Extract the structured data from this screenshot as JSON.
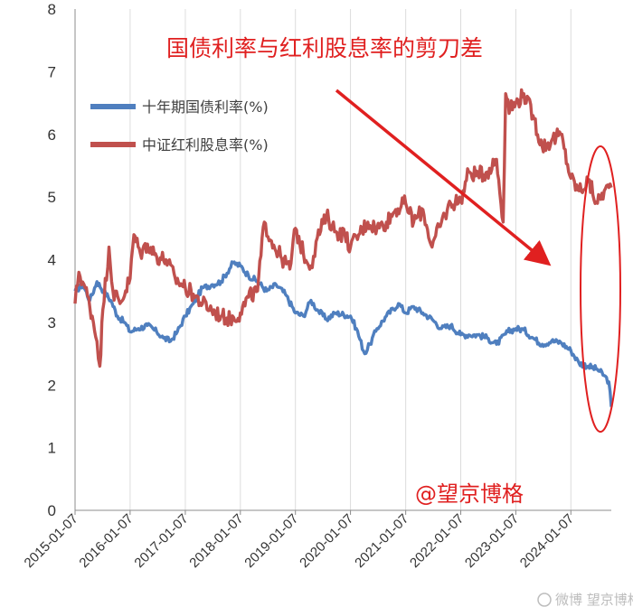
{
  "chart_data": {
    "type": "line",
    "title": "国债利率与红利股息率的剪刀差",
    "xlabel": "",
    "ylabel": "",
    "ylim": [
      0,
      8
    ],
    "yticks": [
      "0",
      "1",
      "2",
      "3",
      "4",
      "5",
      "6",
      "7",
      "8"
    ],
    "xticks": [
      "2015-01-07",
      "2016-01-07",
      "2017-01-07",
      "2018-01-07",
      "2019-01-07",
      "2020-01-07",
      "2021-01-07",
      "2022-01-07",
      "2023-01-07",
      "2024-01-07"
    ],
    "x_start": "2015-01-07",
    "x_end": "2024-10-01",
    "grid": "vertical",
    "legend": "top-left",
    "series": [
      {
        "name": "十年期国债利率(%)",
        "color": "#4f7fbf",
        "points": [
          [
            "2015-01-07",
            3.5
          ],
          [
            "2015-03-01",
            3.6
          ],
          [
            "2015-04-15",
            3.35
          ],
          [
            "2015-06-01",
            3.65
          ],
          [
            "2015-07-15",
            3.5
          ],
          [
            "2015-09-01",
            3.35
          ],
          [
            "2015-10-15",
            3.1
          ],
          [
            "2015-12-01",
            3.0
          ],
          [
            "2016-01-07",
            2.85
          ],
          [
            "2016-03-01",
            2.9
          ],
          [
            "2016-05-01",
            2.95
          ],
          [
            "2016-07-01",
            2.85
          ],
          [
            "2016-08-15",
            2.75
          ],
          [
            "2016-10-01",
            2.7
          ],
          [
            "2016-11-15",
            2.85
          ],
          [
            "2017-01-07",
            3.1
          ],
          [
            "2017-03-01",
            3.3
          ],
          [
            "2017-05-01",
            3.55
          ],
          [
            "2017-07-01",
            3.6
          ],
          [
            "2017-09-01",
            3.65
          ],
          [
            "2017-11-20",
            3.95
          ],
          [
            "2018-01-07",
            3.9
          ],
          [
            "2018-03-01",
            3.75
          ],
          [
            "2018-05-01",
            3.65
          ],
          [
            "2018-07-01",
            3.5
          ],
          [
            "2018-09-01",
            3.6
          ],
          [
            "2018-11-01",
            3.45
          ],
          [
            "2019-01-07",
            3.15
          ],
          [
            "2019-03-01",
            3.1
          ],
          [
            "2019-04-20",
            3.35
          ],
          [
            "2019-06-01",
            3.2
          ],
          [
            "2019-08-01",
            3.05
          ],
          [
            "2019-10-01",
            3.15
          ],
          [
            "2020-01-07",
            3.1
          ],
          [
            "2020-02-15",
            2.9
          ],
          [
            "2020-04-10",
            2.5
          ],
          [
            "2020-05-15",
            2.65
          ],
          [
            "2020-07-01",
            2.9
          ],
          [
            "2020-09-01",
            3.1
          ],
          [
            "2020-11-20",
            3.3
          ],
          [
            "2021-01-07",
            3.15
          ],
          [
            "2021-03-01",
            3.25
          ],
          [
            "2021-05-01",
            3.15
          ],
          [
            "2021-07-01",
            3.05
          ],
          [
            "2021-09-01",
            2.9
          ],
          [
            "2021-11-01",
            2.95
          ],
          [
            "2022-01-07",
            2.8
          ],
          [
            "2022-03-01",
            2.8
          ],
          [
            "2022-05-01",
            2.8
          ],
          [
            "2022-07-01",
            2.75
          ],
          [
            "2022-09-01",
            2.65
          ],
          [
            "2022-11-15",
            2.85
          ],
          [
            "2023-01-07",
            2.9
          ],
          [
            "2023-03-01",
            2.88
          ],
          [
            "2023-05-01",
            2.75
          ],
          [
            "2023-07-01",
            2.65
          ],
          [
            "2023-09-01",
            2.7
          ],
          [
            "2023-11-01",
            2.68
          ],
          [
            "2024-01-07",
            2.55
          ],
          [
            "2024-03-01",
            2.35
          ],
          [
            "2024-05-01",
            2.3
          ],
          [
            "2024-07-01",
            2.25
          ],
          [
            "2024-08-15",
            2.15
          ],
          [
            "2024-09-15",
            2.05
          ],
          [
            "2024-10-01",
            1.65
          ]
        ]
      },
      {
        "name": "中证红利股息率(%)",
        "color": "#c0504d",
        "points": [
          [
            "2015-01-07",
            3.3
          ],
          [
            "2015-02-01",
            3.8
          ],
          [
            "2015-03-15",
            3.55
          ],
          [
            "2015-05-01",
            3.1
          ],
          [
            "2015-06-01",
            2.7
          ],
          [
            "2015-06-20",
            2.3
          ],
          [
            "2015-07-10",
            3.2
          ],
          [
            "2015-08-20",
            4.2
          ],
          [
            "2015-09-15",
            3.5
          ],
          [
            "2015-11-01",
            3.3
          ],
          [
            "2016-01-07",
            3.7
          ],
          [
            "2016-02-01",
            4.4
          ],
          [
            "2016-03-15",
            4.1
          ],
          [
            "2016-05-01",
            4.25
          ],
          [
            "2016-07-01",
            4.05
          ],
          [
            "2016-09-01",
            4.0
          ],
          [
            "2016-11-01",
            3.7
          ],
          [
            "2017-01-07",
            3.55
          ],
          [
            "2017-03-01",
            3.45
          ],
          [
            "2017-05-01",
            3.3
          ],
          [
            "2017-07-01",
            3.2
          ],
          [
            "2017-09-01",
            3.1
          ],
          [
            "2017-11-01",
            3.05
          ],
          [
            "2018-01-07",
            3.15
          ],
          [
            "2018-03-01",
            3.4
          ],
          [
            "2018-05-01",
            3.5
          ],
          [
            "2018-06-15",
            4.6
          ],
          [
            "2018-08-01",
            4.3
          ],
          [
            "2018-10-01",
            4.05
          ],
          [
            "2018-12-01",
            3.85
          ],
          [
            "2019-01-07",
            4.5
          ],
          [
            "2019-03-01",
            4.1
          ],
          [
            "2019-04-20",
            3.9
          ],
          [
            "2019-06-01",
            4.35
          ],
          [
            "2019-08-01",
            4.7
          ],
          [
            "2019-10-01",
            4.45
          ],
          [
            "2019-12-01",
            4.4
          ],
          [
            "2020-01-07",
            4.2
          ],
          [
            "2020-03-01",
            4.4
          ],
          [
            "2020-05-01",
            4.6
          ],
          [
            "2020-07-01",
            4.5
          ],
          [
            "2020-09-01",
            4.6
          ],
          [
            "2020-11-01",
            4.8
          ],
          [
            "2021-01-07",
            4.9
          ],
          [
            "2021-03-01",
            4.6
          ],
          [
            "2021-05-01",
            4.8
          ],
          [
            "2021-07-01",
            4.2
          ],
          [
            "2021-09-01",
            4.6
          ],
          [
            "2021-11-01",
            4.9
          ],
          [
            "2022-01-07",
            4.95
          ],
          [
            "2022-03-01",
            5.4
          ],
          [
            "2022-05-01",
            5.35
          ],
          [
            "2022-07-01",
            5.4
          ],
          [
            "2022-09-01",
            5.6
          ],
          [
            "2022-10-15",
            4.6
          ],
          [
            "2022-11-01",
            6.65
          ],
          [
            "2022-12-01",
            6.4
          ],
          [
            "2023-01-07",
            6.5
          ],
          [
            "2023-03-01",
            6.65
          ],
          [
            "2023-05-01",
            6.3
          ],
          [
            "2023-07-01",
            5.8
          ],
          [
            "2023-09-01",
            5.9
          ],
          [
            "2023-11-01",
            6.0
          ],
          [
            "2024-01-07",
            5.3
          ],
          [
            "2024-03-01",
            5.1
          ],
          [
            "2024-05-01",
            5.25
          ],
          [
            "2024-07-01",
            4.9
          ],
          [
            "2024-08-15",
            5.1
          ],
          [
            "2024-10-01",
            5.15
          ]
        ]
      }
    ],
    "annotations": {
      "highlight": "ellipse around latest values",
      "arrow": "downward arrow pointing to widening gap"
    }
  },
  "labels": {
    "credit": "@望京博格",
    "watermark": "微博 望京博格"
  },
  "colors": {
    "accent": "#e02020",
    "axis": "#8c8c8c",
    "grid": "#dcdcdc"
  }
}
